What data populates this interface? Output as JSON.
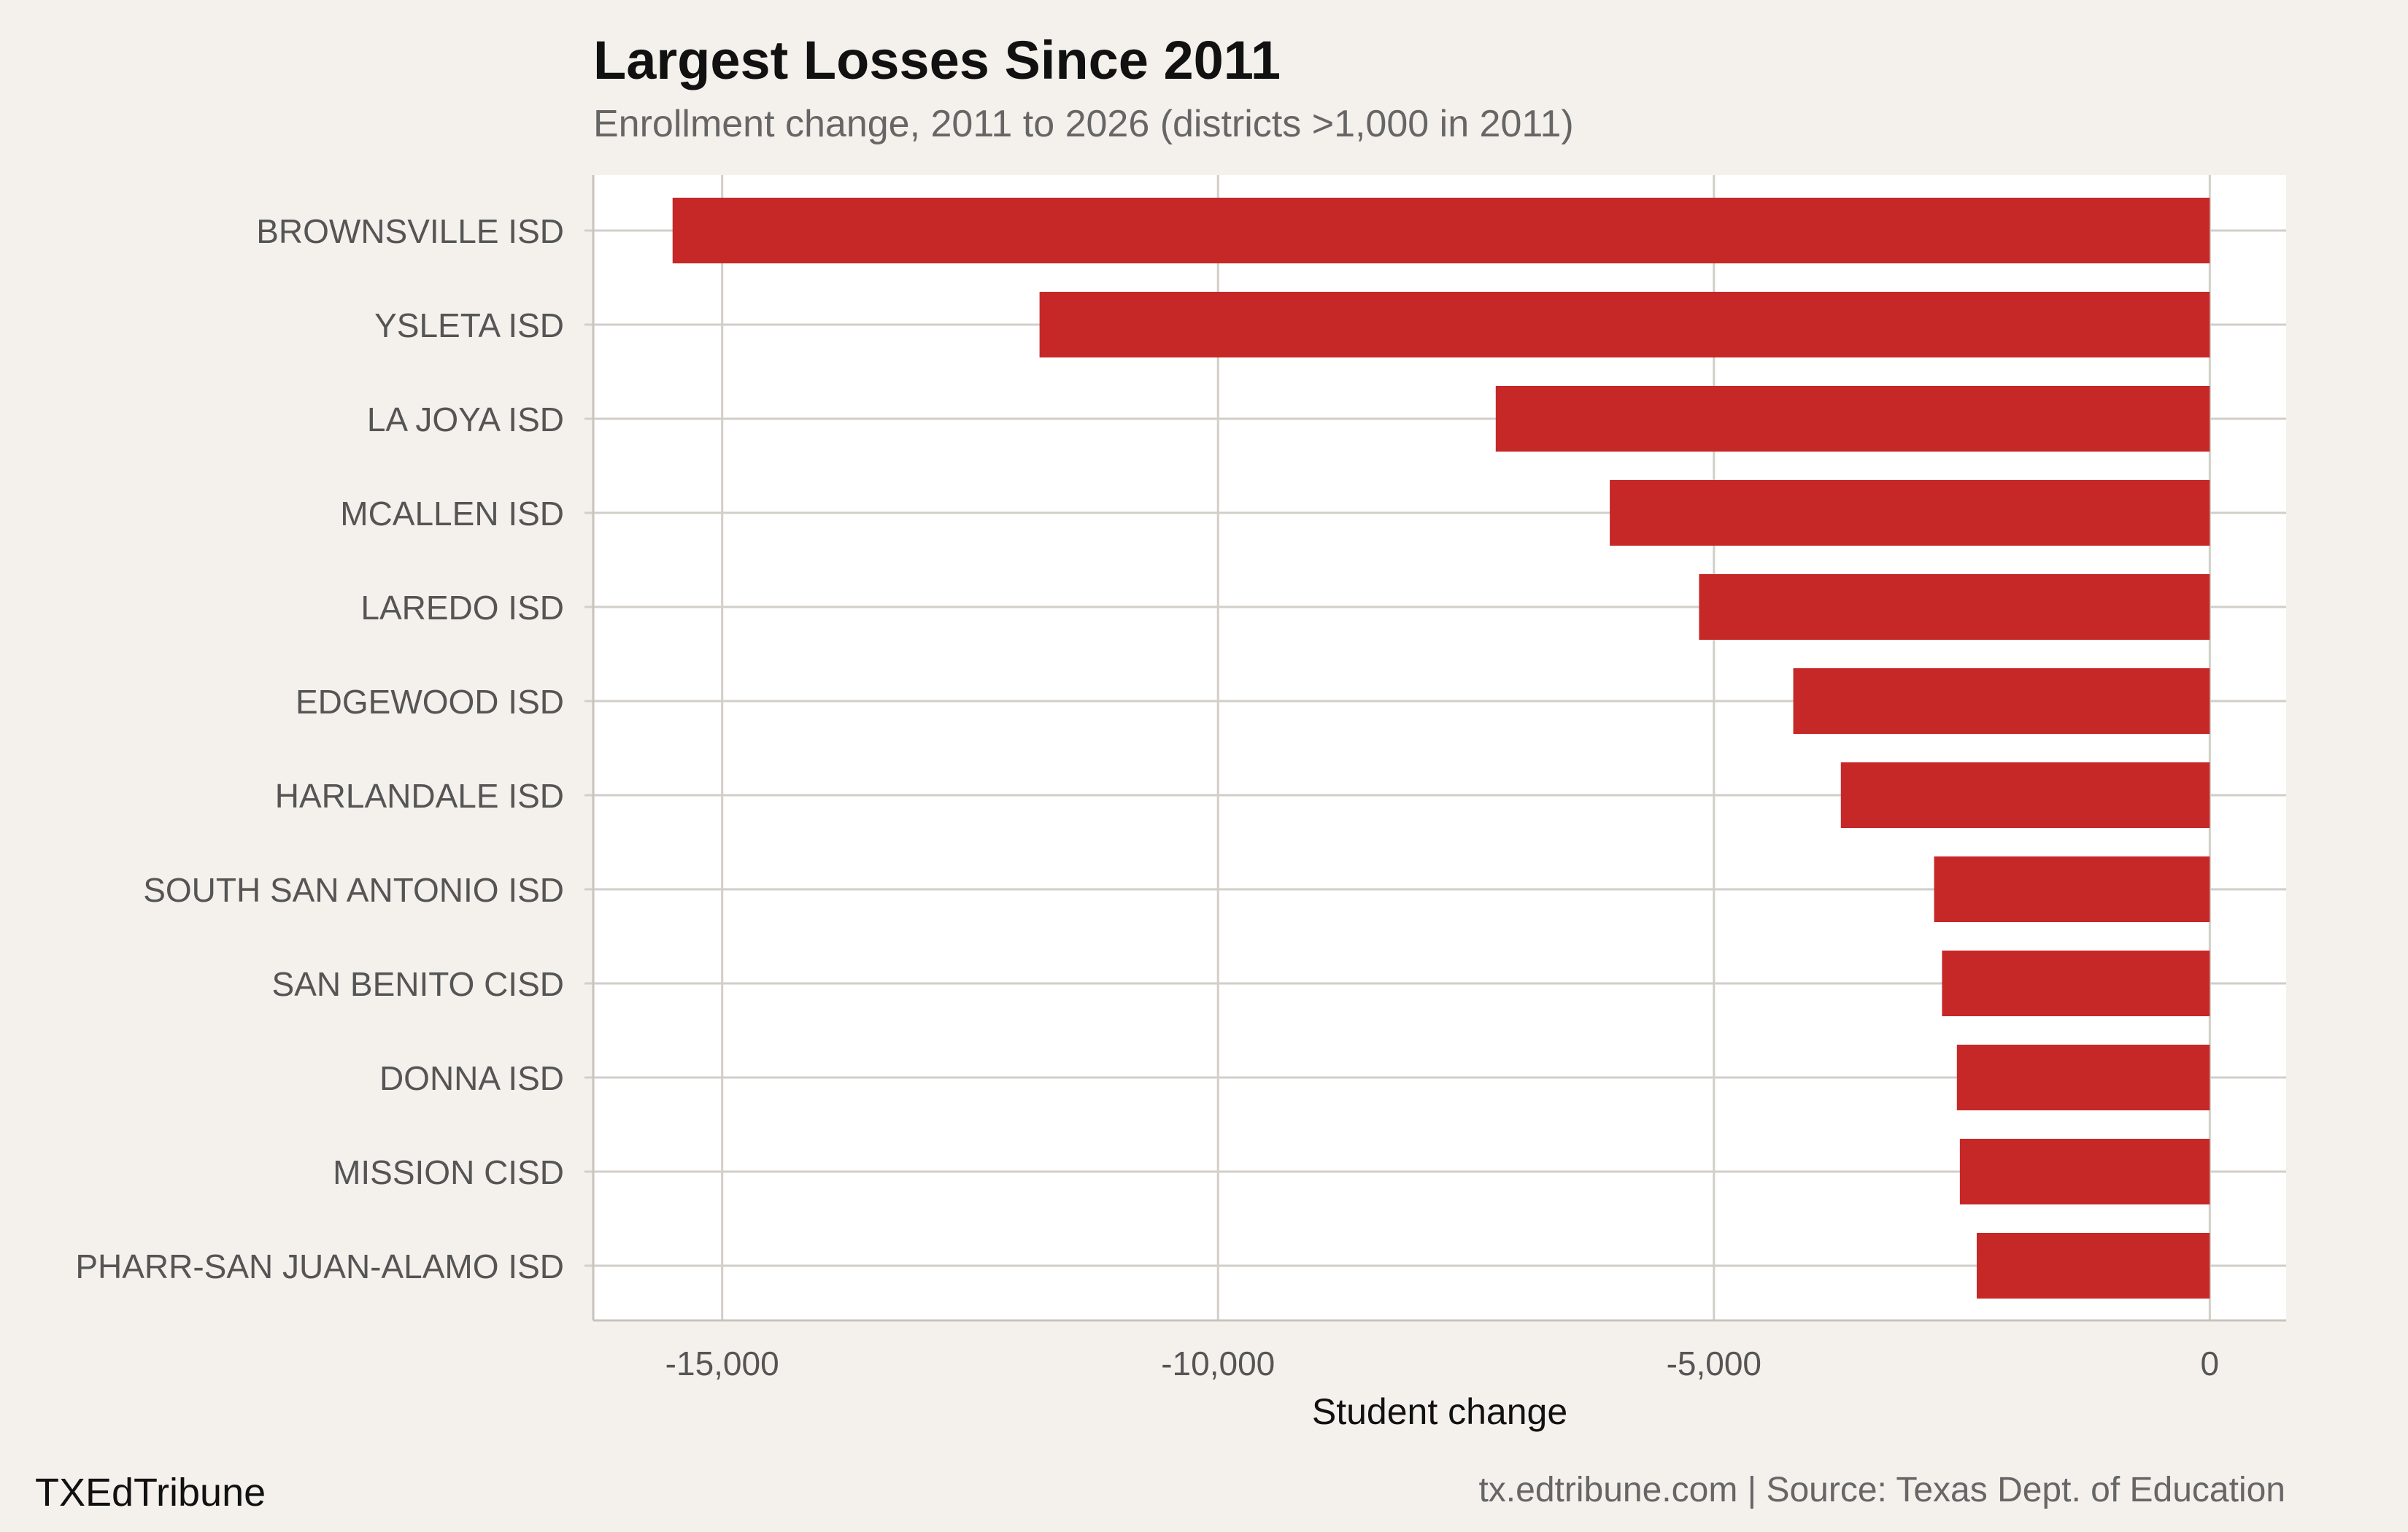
{
  "chart_data": {
    "type": "bar",
    "orientation": "horizontal",
    "title": "Largest Losses Since 2011",
    "subtitle": "Enrollment change, 2011 to 2026 (districts >1,000 in 2011)",
    "xlabel": "Student change",
    "ylabel": "",
    "xlim": [
      -16300,
      770
    ],
    "xticks": [
      -15000,
      -10000,
      -5000,
      0
    ],
    "xtick_labels": [
      "-15,000",
      "-10,000",
      "-5,000",
      "0"
    ],
    "grid": true,
    "legend": "none",
    "bar_color": "#c62828",
    "categories": [
      "BROWNSVILLE ISD",
      "YSLETA ISD",
      "LA JOYA ISD",
      "MCALLEN ISD",
      "LAREDO ISD",
      "EDGEWOOD ISD",
      "HARLANDALE ISD",
      "SOUTH SAN ANTONIO ISD",
      "SAN BENITO CISD",
      "DONNA ISD",
      "MISSION CISD",
      "PHARR-SAN JUAN-ALAMO ISD"
    ],
    "values": [
      -15500,
      -11800,
      -7200,
      -6050,
      -5150,
      -4200,
      -3720,
      -2780,
      -2700,
      -2550,
      -2520,
      -2350
    ]
  },
  "footer": {
    "brand": "TXEdTribune",
    "source": "tx.edtribune.com | Source: Texas Dept. of Education"
  }
}
